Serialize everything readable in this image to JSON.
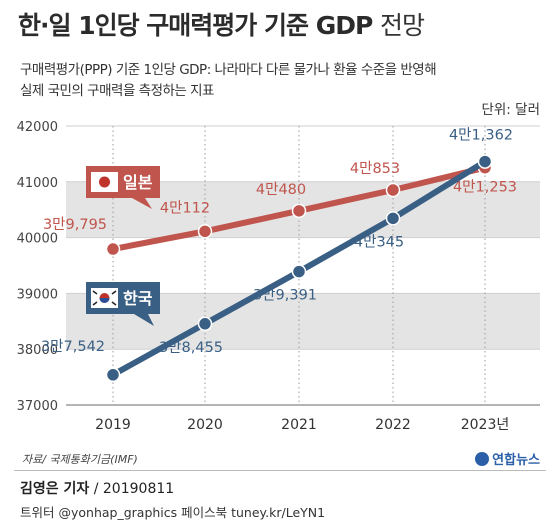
{
  "title": {
    "main": "한·일 1인당 구매력평가 기준 GDP",
    "suffix": "전망"
  },
  "description": {
    "line1": "구매력평가(PPP) 기준 1인당 GDP: 나라마다 다른 물가나 환율 수준을 반영해",
    "line2": "실제 국민의 구매력을 측정하는 지표"
  },
  "unit_label": "단위: 달러",
  "source": "자료/ 국제통화기금(IMF)",
  "logo_text": "연합뉴스",
  "credit": {
    "name": "김영은 기자",
    "date": "/ 20190811"
  },
  "social": "트위터 @yonhap_graphics  페이스북 tuney.kr/LeYN1",
  "colors": {
    "japan": "#c0554d",
    "korea": "#3a5f84",
    "band": "#e4e4e4",
    "grid": "#cfcfcf"
  },
  "chart_data": {
    "type": "line",
    "x": [
      2019,
      2020,
      2021,
      2022,
      2023
    ],
    "x_tick_labels": [
      "2019",
      "2020",
      "2021",
      "2022",
      "2023년"
    ],
    "ylim": [
      37000,
      42000
    ],
    "y_ticks": [
      37000,
      38000,
      39000,
      40000,
      41000,
      42000
    ],
    "grid": true,
    "series": [
      {
        "name": "일본",
        "flag": "japan-flag-icon",
        "values": [
          39795,
          40112,
          40480,
          40853,
          41253
        ],
        "labels": [
          "3만9,795",
          "4만112",
          "4만480",
          "4만853",
          "4만1,253"
        ]
      },
      {
        "name": "한국",
        "flag": "korea-flag-icon",
        "values": [
          37542,
          38455,
          39391,
          40345,
          41362
        ],
        "labels": [
          "3만7,542",
          "3만8,455",
          "3만9,391",
          "4만345",
          "4만1,362"
        ]
      }
    ]
  }
}
